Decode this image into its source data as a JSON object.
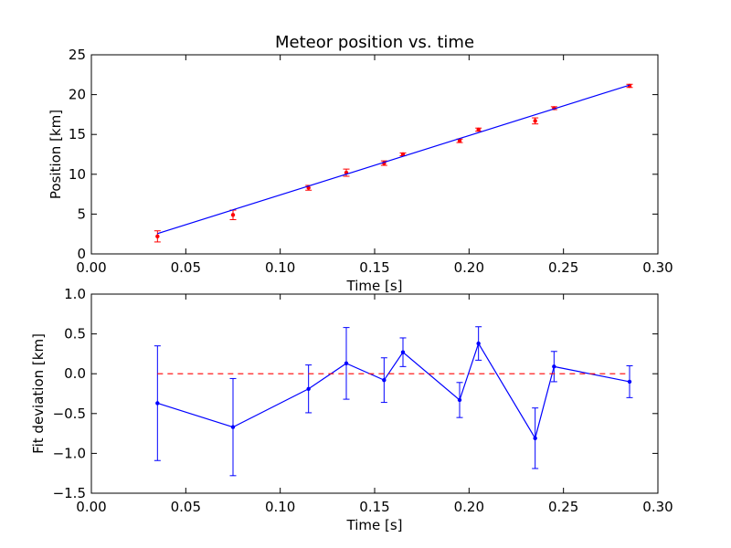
{
  "chart_data": [
    {
      "type": "scatter",
      "title": "Meteor position vs. time",
      "xlabel": "Time [s]",
      "ylabel": "Position [km]",
      "xlim": [
        0.0,
        0.3
      ],
      "ylim": [
        0,
        25
      ],
      "xticks": [
        "0.00",
        "0.05",
        "0.10",
        "0.15",
        "0.20",
        "0.25",
        "0.30"
      ],
      "yticks": [
        "0",
        "5",
        "10",
        "15",
        "20",
        "25"
      ],
      "grid": false,
      "series": [
        {
          "kind": "points-with-errorbars",
          "color": "#ff0000",
          "x": [
            0.035,
            0.075,
            0.115,
            0.135,
            0.155,
            0.165,
            0.195,
            0.205,
            0.235,
            0.245,
            0.285
          ],
          "y": [
            2.2,
            4.9,
            8.3,
            10.2,
            11.4,
            12.5,
            14.2,
            15.6,
            16.7,
            18.3,
            21.1
          ],
          "yerr": [
            0.7,
            0.6,
            0.3,
            0.45,
            0.28,
            0.18,
            0.22,
            0.2,
            0.38,
            0.18,
            0.2
          ]
        },
        {
          "kind": "fit-line",
          "color": "#0000ff",
          "x": [
            0.035,
            0.285
          ],
          "y": [
            2.55,
            21.2
          ]
        }
      ]
    },
    {
      "type": "line",
      "title": "",
      "xlabel": "Time [s]",
      "ylabel": "Fit deviation [km]",
      "xlim": [
        0.0,
        0.3
      ],
      "ylim": [
        -1.5,
        1.0
      ],
      "xticks": [
        "0.00",
        "0.05",
        "0.10",
        "0.15",
        "0.20",
        "0.25",
        "0.30"
      ],
      "yticks": [
        "1.0",
        "0.5",
        "0.0",
        "−0.5",
        "−1.0",
        "−1.5"
      ],
      "ytick_values": [
        1.0,
        0.5,
        0.0,
        -0.5,
        -1.0,
        -1.5
      ],
      "grid": false,
      "series": [
        {
          "kind": "line-with-errorbars",
          "color": "#0000ff",
          "x": [
            0.035,
            0.075,
            0.115,
            0.135,
            0.155,
            0.165,
            0.195,
            0.205,
            0.235,
            0.245,
            0.285
          ],
          "y": [
            -0.37,
            -0.67,
            -0.19,
            0.13,
            -0.08,
            0.27,
            -0.33,
            0.38,
            -0.81,
            0.09,
            -0.1
          ],
          "yerr": [
            0.72,
            0.61,
            0.3,
            0.45,
            0.28,
            0.18,
            0.22,
            0.21,
            0.38,
            0.19,
            0.2
          ]
        },
        {
          "kind": "zero-reference",
          "color": "#ff0000",
          "dashed": true,
          "x": [
            0.035,
            0.285
          ],
          "y": [
            0.0,
            0.0
          ]
        }
      ]
    }
  ]
}
